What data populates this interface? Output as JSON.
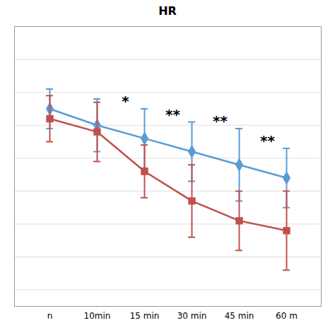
{
  "chart_data": {
    "type": "line",
    "title": "HR",
    "categories": [
      "n",
      "10min",
      "15 min",
      "30 min",
      "45 min",
      "60 m"
    ],
    "series": [
      {
        "color": "#5b9bd5",
        "marker": "diamond",
        "values": [
          95,
          90,
          86,
          82,
          78,
          74
        ],
        "errors": [
          6,
          8,
          9,
          9,
          11,
          9
        ]
      },
      {
        "color": "#c0504d",
        "marker": "square",
        "values": [
          92,
          88,
          76,
          67,
          61,
          58
        ],
        "errors": [
          7,
          9,
          8,
          11,
          9,
          12
        ]
      }
    ],
    "ylim": [
      35,
      120
    ],
    "yticks": [
      40,
      50,
      60,
      70,
      80,
      90,
      100,
      110,
      120
    ],
    "grid": true,
    "tick_labels": "x",
    "annotations": [
      {
        "text": "*",
        "category": "15 min"
      },
      {
        "text": "**",
        "category": "30 min"
      },
      {
        "text": "**",
        "category": "45 min"
      },
      {
        "text": "**",
        "category": "60 m"
      }
    ]
  }
}
